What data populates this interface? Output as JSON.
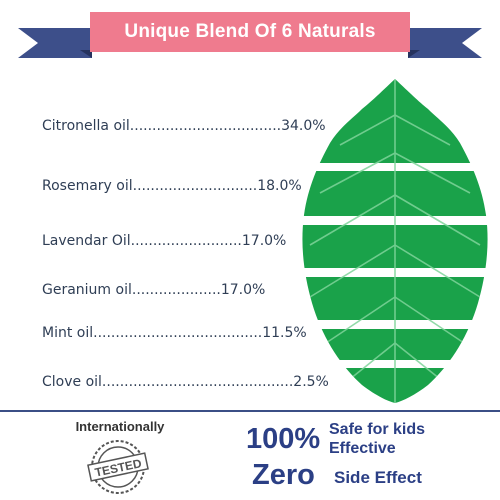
{
  "banner": {
    "title": "Unique Blend Of 6 Naturals"
  },
  "ingredients": [
    {
      "label": "Citronella oil..................................34.0%"
    },
    {
      "label": "Rosemary oil............................18.0%"
    },
    {
      "label": "Lavendar Oil.........................17.0%"
    },
    {
      "label": "Geranium oil....................17.0%"
    },
    {
      "label": "Mint oil......................................11.5%"
    },
    {
      "label": "Clove oil...........................................2.5%"
    }
  ],
  "footer": {
    "internationally": "Internationally",
    "stamp_text": "TESTED",
    "percent": "100%",
    "safe_line1": "Safe for kids",
    "safe_line2": "Effective",
    "zero": "Zero",
    "side_effect": "Side Effect"
  },
  "colors": {
    "banner": "#ef7b8e",
    "ribbon": "#3d4f8a",
    "leaf": "#1aa24a",
    "text": "#2b3f85"
  }
}
